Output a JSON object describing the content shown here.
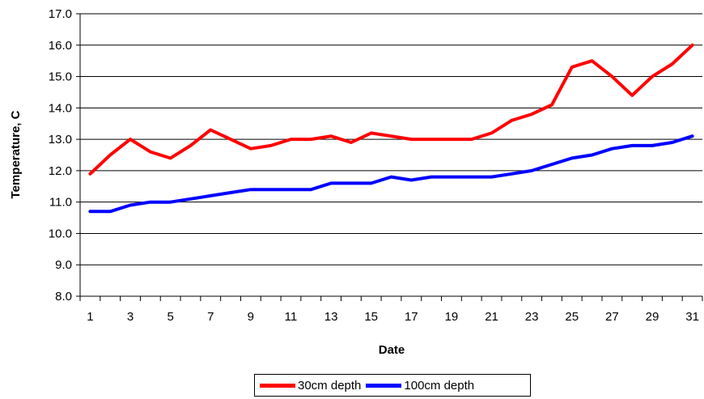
{
  "chart_data": {
    "type": "line",
    "title": "",
    "xlabel": "Date",
    "ylabel": "Temperature, C",
    "x": [
      1,
      2,
      3,
      4,
      5,
      6,
      7,
      8,
      9,
      10,
      11,
      12,
      13,
      14,
      15,
      16,
      17,
      18,
      19,
      20,
      21,
      22,
      23,
      24,
      25,
      26,
      27,
      28,
      29,
      30,
      31
    ],
    "x_tick_labels": [
      "1",
      "3",
      "5",
      "7",
      "9",
      "11",
      "13",
      "15",
      "17",
      "19",
      "21",
      "23",
      "25",
      "27",
      "29",
      "31"
    ],
    "y_tick_labels": [
      "8.0",
      "9.0",
      "10.0",
      "11.0",
      "12.0",
      "13.0",
      "14.0",
      "15.0",
      "16.0",
      "17.0"
    ],
    "ylim": [
      8,
      17
    ],
    "grid": "horizontal",
    "legend_position": "bottom",
    "series": [
      {
        "name": "30cm depth",
        "color": "#ff0000",
        "values": [
          11.9,
          12.5,
          13.0,
          12.6,
          12.4,
          12.8,
          13.3,
          13.0,
          12.7,
          12.8,
          13.0,
          13.0,
          13.1,
          12.9,
          13.2,
          13.1,
          13.0,
          13.0,
          13.0,
          13.0,
          13.2,
          13.6,
          13.8,
          14.1,
          15.3,
          15.5,
          15.0,
          14.4,
          15.0,
          15.4,
          16.0
        ]
      },
      {
        "name": "100cm depth",
        "color": "#0000ff",
        "values": [
          10.7,
          10.7,
          10.9,
          11.0,
          11.0,
          11.1,
          11.2,
          11.3,
          11.4,
          11.4,
          11.4,
          11.4,
          11.6,
          11.6,
          11.6,
          11.8,
          11.7,
          11.8,
          11.8,
          11.8,
          11.8,
          11.9,
          12.0,
          12.2,
          12.4,
          12.5,
          12.7,
          12.8,
          12.8,
          12.9,
          13.1
        ]
      }
    ]
  }
}
